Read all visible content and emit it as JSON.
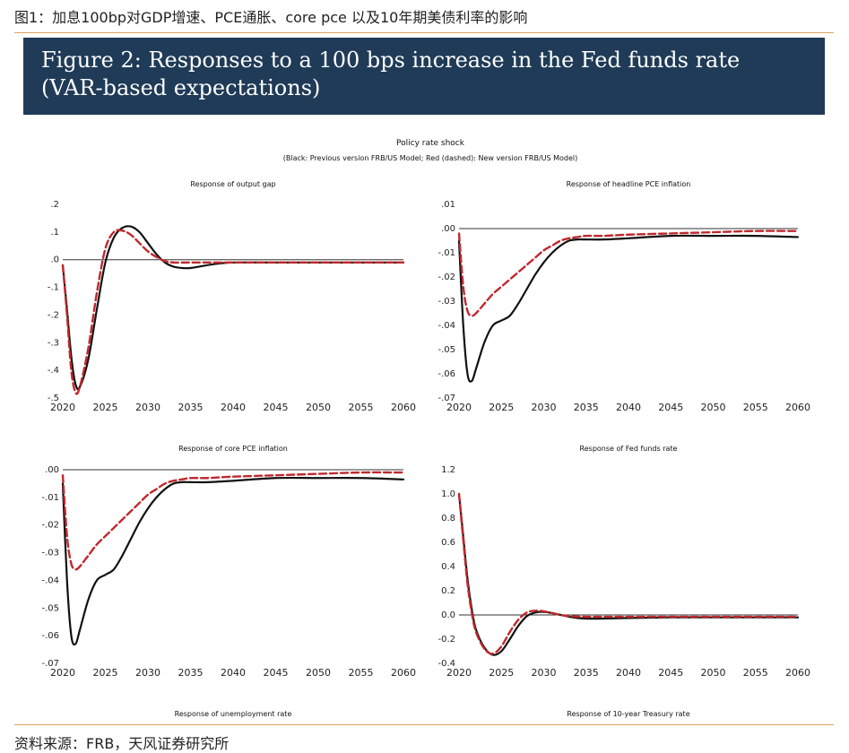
{
  "caption": "图1：加息100bp对GDP增速、PCE通胀、core pce 以及10年期美债利率的影响",
  "banner_title": "Figure 2: Responses to a 100 bps increase in the Fed funds rate (VAR-based expectations)",
  "figure_title": "Policy rate shock",
  "figure_subtitle": "(Black: Previous version FRB/US Model; Red (dashed): New version FRB/US Model)",
  "source": "资料来源：FRB，天风证券研究所",
  "colors": {
    "previous": "#111111",
    "new": "#c0282d",
    "banner": "#1f3b57",
    "rule": "#e0a15e"
  },
  "chart_data": [
    {
      "type": "line",
      "title": "Response of output gap",
      "xlim": [
        2020,
        2060
      ],
      "ylim": [
        -0.5,
        0.2
      ],
      "xticks": [
        2020,
        2025,
        2030,
        2035,
        2040,
        2045,
        2050,
        2055,
        2060
      ],
      "xtick_labels": [
        "2020",
        "2025",
        "2030",
        "2035",
        "2040",
        "2045",
        "2050",
        "2055",
        "2060"
      ],
      "yticks": [
        0.2,
        0.1,
        0.0,
        -0.1,
        -0.2,
        -0.3,
        -0.4,
        -0.5
      ],
      "ytick_labels": [
        ".2",
        ".1",
        ".0",
        "-.1",
        "-.2",
        "-.3",
        "-.4",
        "-.5"
      ],
      "zero_line": 0,
      "series": [
        {
          "style": "solid",
          "x": [
            2020,
            2020.5,
            2021,
            2021.5,
            2022,
            2023,
            2024,
            2025,
            2026,
            2027,
            2028,
            2029,
            2030,
            2031,
            2032,
            2033,
            2034,
            2035,
            2036,
            2038,
            2040,
            2045,
            2050,
            2055,
            2060
          ],
          "y": [
            -0.02,
            -0.18,
            -0.35,
            -0.45,
            -0.46,
            -0.36,
            -0.18,
            -0.01,
            0.08,
            0.115,
            0.12,
            0.1,
            0.06,
            0.02,
            -0.01,
            -0.025,
            -0.03,
            -0.03,
            -0.025,
            -0.015,
            -0.01,
            -0.01,
            -0.01,
            -0.01,
            -0.01
          ]
        },
        {
          "style": "dashed",
          "x": [
            2020,
            2020.5,
            2021,
            2021.5,
            2022,
            2023,
            2024,
            2025,
            2026,
            2027,
            2028,
            2029,
            2030,
            2031,
            2032,
            2033,
            2035,
            2040,
            2045,
            2050,
            2055,
            2060
          ],
          "y": [
            -0.02,
            -0.2,
            -0.4,
            -0.48,
            -0.46,
            -0.32,
            -0.12,
            0.04,
            0.1,
            0.105,
            0.09,
            0.06,
            0.03,
            0.01,
            -0.005,
            -0.01,
            -0.01,
            -0.01,
            -0.01,
            -0.01,
            -0.01,
            -0.01
          ]
        }
      ]
    },
    {
      "type": "line",
      "title": "Response of headline PCE inflation",
      "xlim": [
        2020,
        2060
      ],
      "ylim": [
        -0.07,
        0.01
      ],
      "xticks": [
        2020,
        2025,
        2030,
        2035,
        2040,
        2045,
        2050,
        2055,
        2060
      ],
      "xtick_labels": [
        "2020",
        "2025",
        "2030",
        "2035",
        "2040",
        "2045",
        "2050",
        "2055",
        "2060"
      ],
      "yticks": [
        0.01,
        0.0,
        -0.01,
        -0.02,
        -0.03,
        -0.04,
        -0.05,
        -0.06,
        -0.07
      ],
      "ytick_labels": [
        ".01",
        ".00",
        "-.01",
        "-.02",
        "-.03",
        "-.04",
        "-.05",
        "-.06",
        "-.07"
      ],
      "zero_line": 0,
      "series": [
        {
          "style": "solid",
          "x": [
            2020,
            2020.5,
            2021,
            2021.5,
            2022,
            2023,
            2024,
            2025,
            2026,
            2027,
            2028,
            2029,
            2030,
            2031,
            2032,
            2033,
            2034,
            2035,
            2037,
            2040,
            2045,
            2050,
            2055,
            2060
          ],
          "y": [
            -0.005,
            -0.04,
            -0.06,
            -0.063,
            -0.058,
            -0.047,
            -0.04,
            -0.038,
            -0.036,
            -0.031,
            -0.025,
            -0.019,
            -0.014,
            -0.01,
            -0.007,
            -0.005,
            -0.0045,
            -0.0045,
            -0.0045,
            -0.004,
            -0.003,
            -0.003,
            -0.003,
            -0.0035
          ]
        },
        {
          "style": "dashed",
          "x": [
            2020,
            2020.5,
            2021,
            2021.5,
            2022,
            2023,
            2024,
            2025,
            2026,
            2027,
            2028,
            2029,
            2030,
            2031,
            2032,
            2033,
            2034,
            2035,
            2037,
            2040,
            2045,
            2050,
            2055,
            2060
          ],
          "y": [
            -0.002,
            -0.024,
            -0.034,
            -0.036,
            -0.035,
            -0.031,
            -0.027,
            -0.024,
            -0.021,
            -0.018,
            -0.015,
            -0.012,
            -0.009,
            -0.007,
            -0.005,
            -0.004,
            -0.0035,
            -0.003,
            -0.003,
            -0.0025,
            -0.002,
            -0.0015,
            -0.001,
            -0.001
          ]
        }
      ]
    },
    {
      "type": "line",
      "title": "Response of core PCE inflation",
      "xlabel": "Response of unemployment rate",
      "xlim": [
        2020,
        2060
      ],
      "ylim": [
        -0.07,
        0.0
      ],
      "xticks": [
        2020,
        2025,
        2030,
        2035,
        2040,
        2045,
        2050,
        2055,
        2060
      ],
      "xtick_labels": [
        "2020",
        "2025",
        "2030",
        "2035",
        "2040",
        "2045",
        "2050",
        "2055",
        "2060"
      ],
      "yticks": [
        0.0,
        -0.01,
        -0.02,
        -0.03,
        -0.04,
        -0.05,
        -0.06,
        -0.07
      ],
      "ytick_labels": [
        ".00",
        "-.01",
        "-.02",
        "-.03",
        "-.04",
        "-.05",
        "-.06",
        "-.07"
      ],
      "zero_line": 0,
      "series": [
        {
          "style": "solid",
          "x": [
            2020,
            2020.5,
            2021,
            2021.5,
            2022,
            2023,
            2024,
            2025,
            2026,
            2027,
            2028,
            2029,
            2030,
            2031,
            2032,
            2033,
            2034,
            2035,
            2037,
            2040,
            2045,
            2050,
            2055,
            2060
          ],
          "y": [
            -0.005,
            -0.04,
            -0.06,
            -0.063,
            -0.058,
            -0.047,
            -0.04,
            -0.038,
            -0.036,
            -0.031,
            -0.025,
            -0.019,
            -0.014,
            -0.01,
            -0.007,
            -0.005,
            -0.0045,
            -0.0045,
            -0.0045,
            -0.004,
            -0.003,
            -0.003,
            -0.003,
            -0.0035
          ]
        },
        {
          "style": "dashed",
          "x": [
            2020,
            2020.5,
            2021,
            2021.5,
            2022,
            2023,
            2024,
            2025,
            2026,
            2027,
            2028,
            2029,
            2030,
            2031,
            2032,
            2033,
            2034,
            2035,
            2037,
            2040,
            2045,
            2050,
            2055,
            2060
          ],
          "y": [
            -0.002,
            -0.024,
            -0.034,
            -0.036,
            -0.035,
            -0.031,
            -0.027,
            -0.024,
            -0.021,
            -0.018,
            -0.015,
            -0.012,
            -0.009,
            -0.007,
            -0.005,
            -0.004,
            -0.0035,
            -0.003,
            -0.003,
            -0.0025,
            -0.002,
            -0.0015,
            -0.001,
            -0.001
          ]
        }
      ]
    },
    {
      "type": "line",
      "title": "Response of Fed funds rate",
      "xlabel": "Response of 10-year Treasury rate",
      "xlim": [
        2020,
        2060
      ],
      "ylim": [
        -0.4,
        1.2
      ],
      "xticks": [
        2020,
        2025,
        2030,
        2035,
        2040,
        2045,
        2050,
        2055,
        2060
      ],
      "xtick_labels": [
        "2020",
        "2025",
        "2030",
        "2035",
        "2040",
        "2045",
        "2050",
        "2055",
        "2060"
      ],
      "yticks": [
        1.2,
        1.0,
        0.8,
        0.6,
        0.4,
        0.2,
        0.0,
        -0.2,
        -0.4
      ],
      "ytick_labels": [
        "1.2",
        "1.0",
        "0.8",
        "0.6",
        "0.4",
        "0.2",
        "0.0",
        "-0.2",
        "-0.4"
      ],
      "zero_line": 0,
      "series": [
        {
          "style": "solid",
          "x": [
            2020,
            2020.5,
            2021,
            2021.5,
            2022,
            2023,
            2024,
            2025,
            2026,
            2027,
            2028,
            2029,
            2030,
            2031,
            2032,
            2033,
            2034,
            2035,
            2037,
            2040,
            2045,
            2050,
            2055,
            2060
          ],
          "y": [
            1.0,
            0.65,
            0.3,
            0.05,
            -0.12,
            -0.27,
            -0.33,
            -0.3,
            -0.2,
            -0.09,
            -0.01,
            0.02,
            0.025,
            0.015,
            0.0,
            -0.015,
            -0.025,
            -0.03,
            -0.03,
            -0.025,
            -0.02,
            -0.02,
            -0.02,
            -0.02
          ]
        },
        {
          "style": "dashed",
          "x": [
            2020,
            2020.5,
            2021,
            2021.5,
            2022,
            2023,
            2024,
            2025,
            2026,
            2027,
            2028,
            2029,
            2030,
            2031,
            2032,
            2033,
            2035,
            2040,
            2045,
            2050,
            2055,
            2060
          ],
          "y": [
            1.0,
            0.62,
            0.26,
            0.02,
            -0.14,
            -0.28,
            -0.32,
            -0.26,
            -0.14,
            -0.04,
            0.02,
            0.035,
            0.03,
            0.015,
            0.0,
            -0.01,
            -0.015,
            -0.015,
            -0.015,
            -0.015,
            -0.015,
            -0.015
          ]
        }
      ]
    }
  ]
}
